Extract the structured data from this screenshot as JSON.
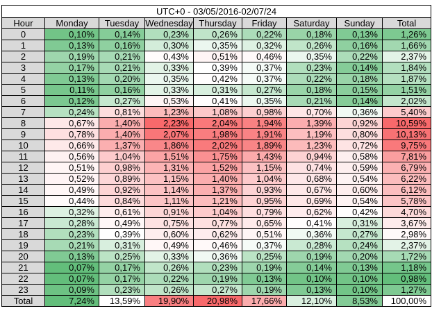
{
  "table": {
    "title": "UTC+0 - 03/05/2016-02/07/24",
    "header": [
      "Hour",
      "Monday",
      "Tuesday",
      "Wednesday",
      "Thursday",
      "Friday",
      "Saturday",
      "Sunday",
      "Total"
    ],
    "scale_colors": [
      "#63be7b",
      "#ffffff",
      "#f8696b"
    ],
    "rows": [
      [
        "0",
        "0,10%",
        "0,14%",
        "0,23%",
        "0,26%",
        "0,22%",
        "0,18%",
        "0,13%",
        "1,26%"
      ],
      [
        "1",
        "0,13%",
        "0,16%",
        "0,30%",
        "0,35%",
        "0,32%",
        "0,26%",
        "0,16%",
        "1,66%"
      ],
      [
        "2",
        "0,19%",
        "0,21%",
        "0,43%",
        "0,51%",
        "0,46%",
        "0,35%",
        "0,22%",
        "2,37%"
      ],
      [
        "3",
        "0,17%",
        "0,21%",
        "0,33%",
        "0,39%",
        "0,37%",
        "0,23%",
        "0,14%",
        "1,84%"
      ],
      [
        "4",
        "0,13%",
        "0,20%",
        "0,35%",
        "0,42%",
        "0,37%",
        "0,22%",
        "0,18%",
        "1,87%"
      ],
      [
        "5",
        "0,11%",
        "0,16%",
        "0,33%",
        "0,31%",
        "0,27%",
        "0,18%",
        "0,15%",
        "1,51%"
      ],
      [
        "6",
        "0,12%",
        "0,27%",
        "0,53%",
        "0,41%",
        "0,35%",
        "0,21%",
        "0,14%",
        "2,02%"
      ],
      [
        "7",
        "0,24%",
        "0,81%",
        "1,23%",
        "1,08%",
        "0,98%",
        "0,70%",
        "0,36%",
        "5,40%"
      ],
      [
        "8",
        "0,67%",
        "1,40%",
        "2,23%",
        "2,04%",
        "1,94%",
        "1,39%",
        "0,92%",
        "10,59%"
      ],
      [
        "9",
        "0,78%",
        "1,40%",
        "2,07%",
        "1,98%",
        "1,91%",
        "1,19%",
        "0,80%",
        "10,13%"
      ],
      [
        "10",
        "0,66%",
        "1,37%",
        "1,86%",
        "2,02%",
        "1,89%",
        "1,23%",
        "0,72%",
        "9,75%"
      ],
      [
        "11",
        "0,56%",
        "1,04%",
        "1,51%",
        "1,75%",
        "1,43%",
        "0,94%",
        "0,58%",
        "7,81%"
      ],
      [
        "12",
        "0,51%",
        "0,98%",
        "1,31%",
        "1,52%",
        "1,15%",
        "0,74%",
        "0,59%",
        "6,79%"
      ],
      [
        "13",
        "0,52%",
        "0,89%",
        "1,15%",
        "1,40%",
        "1,04%",
        "0,68%",
        "0,54%",
        "6,22%"
      ],
      [
        "14",
        "0,49%",
        "0,92%",
        "1,14%",
        "1,37%",
        "0,93%",
        "0,67%",
        "0,60%",
        "6,12%"
      ],
      [
        "15",
        "0,44%",
        "0,84%",
        "1,11%",
        "1,21%",
        "0,95%",
        "0,69%",
        "0,54%",
        "5,78%"
      ],
      [
        "16",
        "0,32%",
        "0,61%",
        "0,91%",
        "1,04%",
        "0,79%",
        "0,62%",
        "0,42%",
        "4,70%"
      ],
      [
        "17",
        "0,28%",
        "0,49%",
        "0,75%",
        "0,77%",
        "0,65%",
        "0,41%",
        "0,31%",
        "3,67%"
      ],
      [
        "18",
        "0,23%",
        "0,39%",
        "0,60%",
        "0,62%",
        "0,51%",
        "0,36%",
        "0,27%",
        "2,98%"
      ],
      [
        "19",
        "0,21%",
        "0,31%",
        "0,49%",
        "0,46%",
        "0,37%",
        "0,28%",
        "0,24%",
        "2,37%"
      ],
      [
        "20",
        "0,13%",
        "0,25%",
        "0,33%",
        "0,36%",
        "0,25%",
        "0,19%",
        "0,20%",
        "1,72%"
      ],
      [
        "21",
        "0,07%",
        "0,17%",
        "0,26%",
        "0,23%",
        "0,19%",
        "0,14%",
        "0,13%",
        "1,18%"
      ],
      [
        "22",
        "0,07%",
        "0,17%",
        "0,22%",
        "0,19%",
        "0,13%",
        "0,10%",
        "0,10%",
        "0,98%"
      ],
      [
        "23",
        "0,09%",
        "0,23%",
        "0,26%",
        "0,27%",
        "0,19%",
        "0,13%",
        "0,10%",
        "1,27%"
      ]
    ],
    "total_row": [
      "Total",
      "7,24%",
      "13,59%",
      "19,90%",
      "20,98%",
      "17,66%",
      "12,10%",
      "8,53%",
      "100,00%"
    ]
  }
}
